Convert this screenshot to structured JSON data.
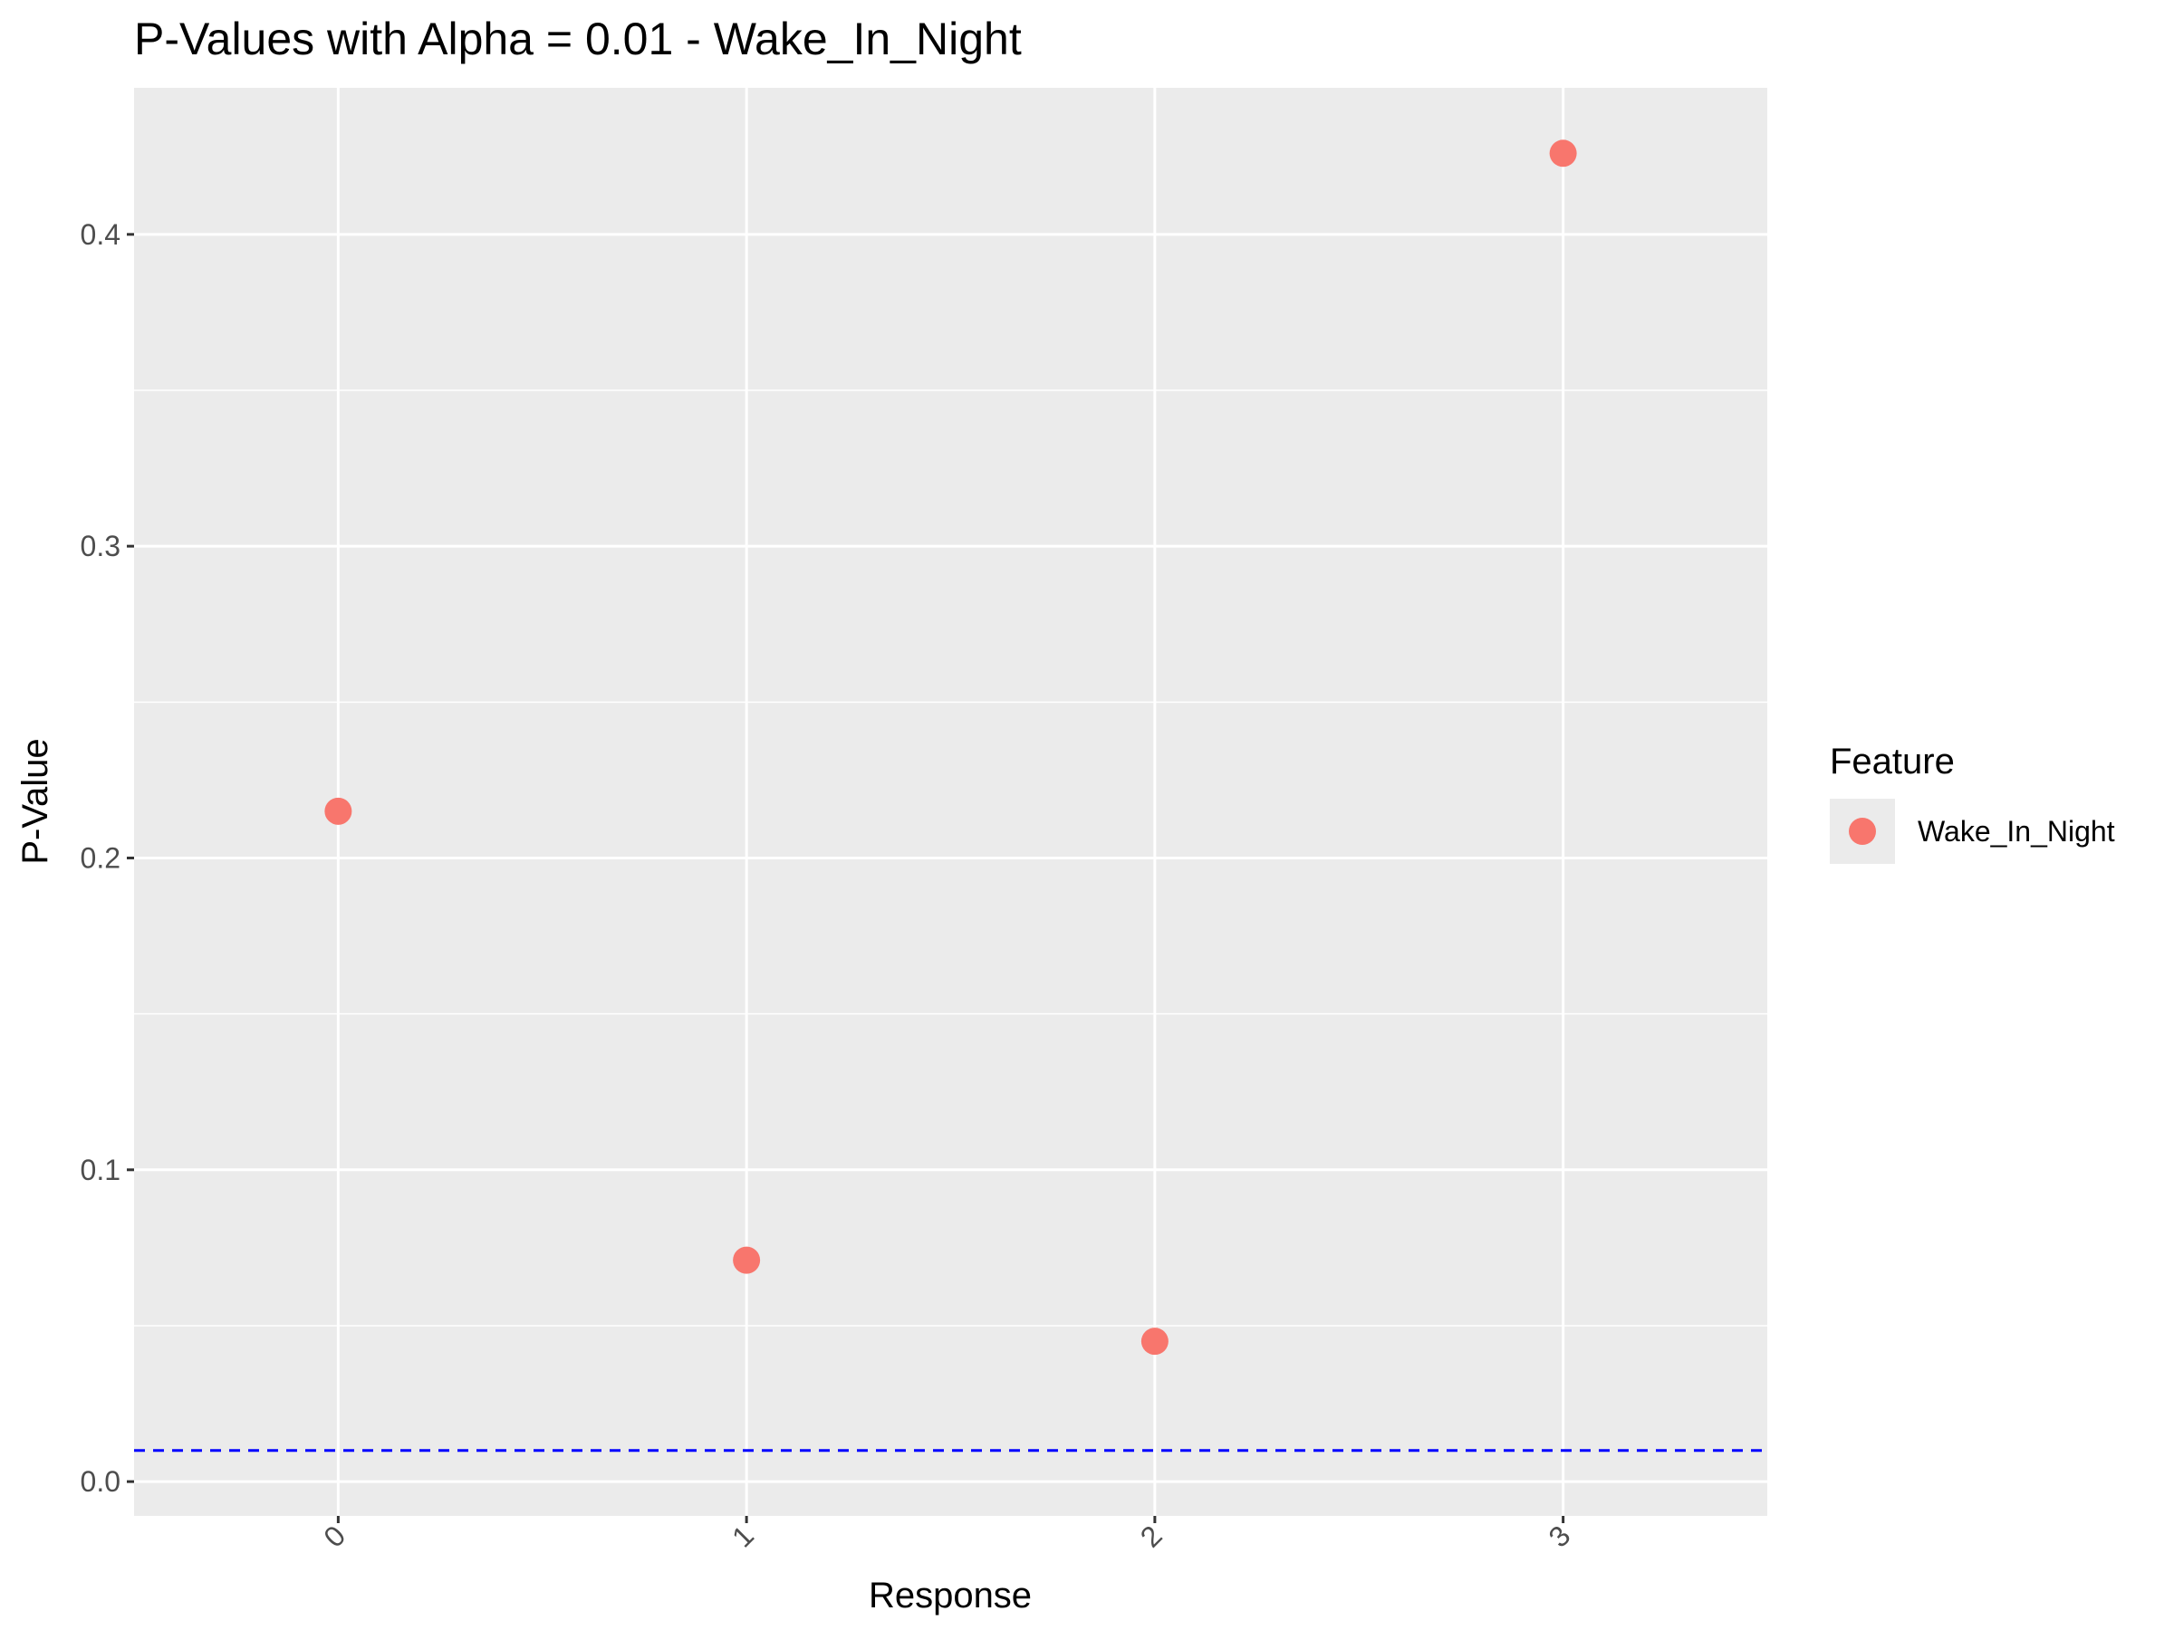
{
  "chart_data": {
    "type": "scatter",
    "title": "P-Values with Alpha = 0.01 - Wake_In_Night",
    "xlabel": "Response",
    "ylabel": "P-Value",
    "categories": [
      "0",
      "1",
      "2",
      "3"
    ],
    "series": [
      {
        "name": "Wake_In_Night",
        "values": [
          0.215,
          0.071,
          0.045,
          0.426
        ]
      }
    ],
    "alpha_line": 0.01,
    "ylim": [
      -0.011,
      0.447
    ],
    "y_ticks": [
      0.0,
      0.1,
      0.2,
      0.3,
      0.4
    ],
    "y_tick_labels": [
      "0.0",
      "0.1",
      "0.2",
      "0.3",
      "0.4"
    ],
    "legend": {
      "title": "Feature",
      "position": "right"
    },
    "grid": true,
    "colors": {
      "point": "#F8766D",
      "alpha_line": "#0000FF",
      "panel_background": "#EBEBEB",
      "grid": "#FFFFFF",
      "tick_label": "#4D4D4D"
    }
  }
}
